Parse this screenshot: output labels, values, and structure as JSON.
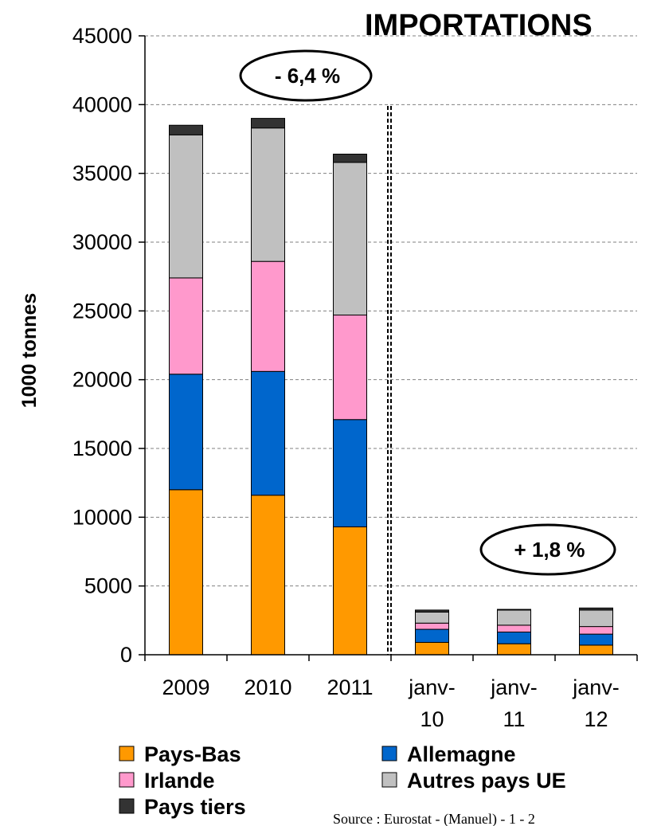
{
  "chart_data": {
    "type": "bar",
    "stacked": true,
    "title": "IMPORTATIONS",
    "ylabel": "1000 tonnes",
    "ylim": [
      0,
      45000
    ],
    "yticks": [
      0,
      5000,
      10000,
      15000,
      20000,
      25000,
      30000,
      35000,
      40000,
      45000
    ],
    "grid": true,
    "categories": [
      [
        "2009"
      ],
      [
        "2010"
      ],
      [
        "2011"
      ],
      [
        "janv-",
        "10"
      ],
      [
        "janv-",
        "11"
      ],
      [
        "janv-",
        "12"
      ]
    ],
    "series": [
      {
        "name": "Pays-Bas",
        "color": "#FF9900",
        "values": [
          12000,
          11600,
          9300,
          900,
          800,
          700
        ]
      },
      {
        "name": "Allemagne",
        "color": "#0066CC",
        "values": [
          8400,
          9000,
          7800,
          950,
          850,
          800
        ]
      },
      {
        "name": "Irlande",
        "color": "#FF99CC",
        "values": [
          7000,
          8000,
          7600,
          450,
          500,
          550
        ]
      },
      {
        "name": "Autres pays UE",
        "color": "#C0C0C0",
        "values": [
          10400,
          9700,
          11100,
          800,
          1100,
          1200
        ]
      },
      {
        "name": "Pays tiers",
        "color": "#333333",
        "values": [
          700,
          700,
          600,
          150,
          50,
          150
        ]
      }
    ],
    "annotations": [
      "- 6,4 %",
      "+ 1,8 %"
    ],
    "legend_position": "bottom",
    "source": "Source : Eurostat - (Manuel) - 1 - 2"
  }
}
